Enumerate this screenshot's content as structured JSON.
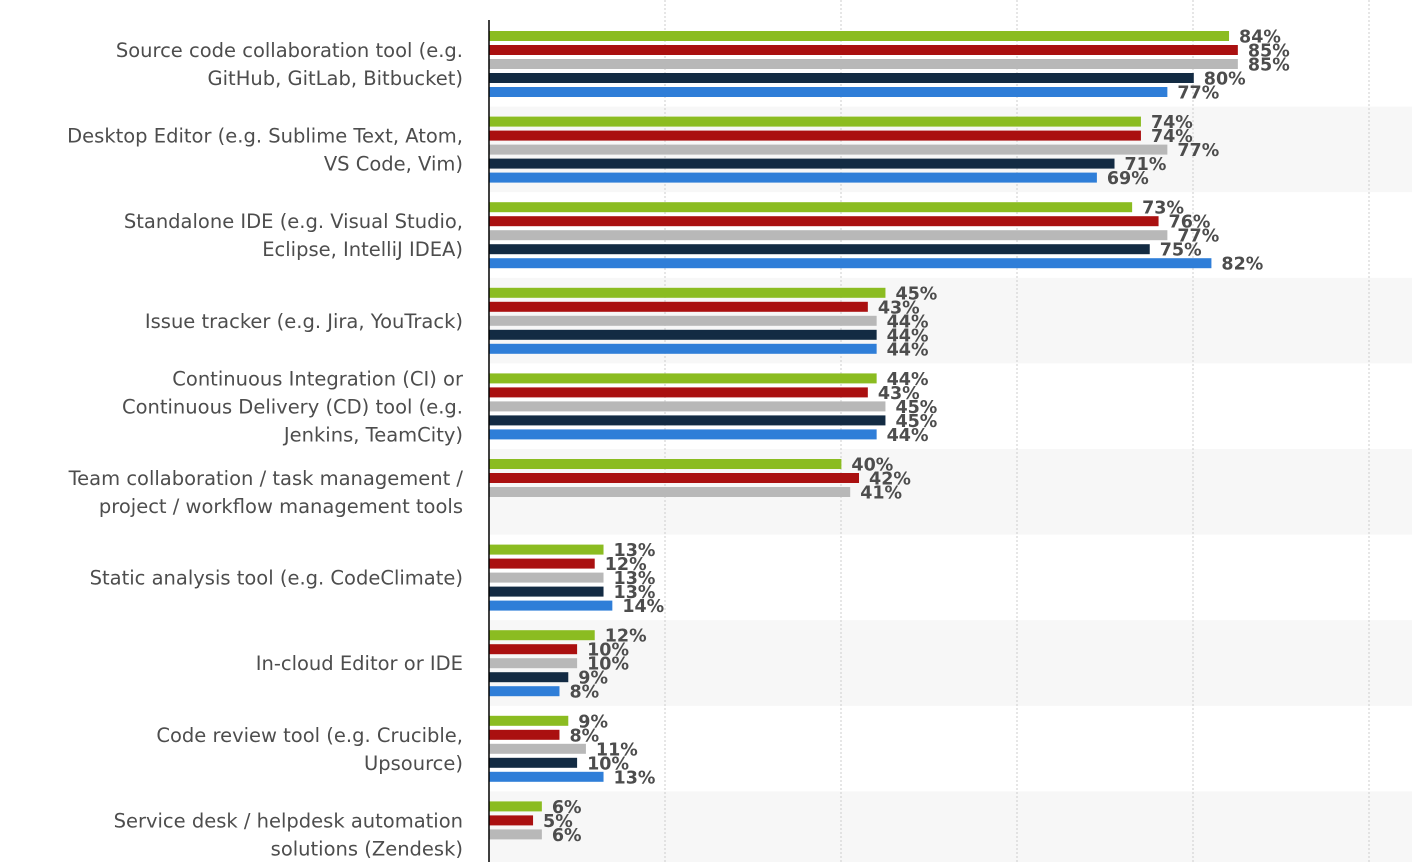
{
  "chart_data": {
    "type": "bar",
    "orientation": "horizontal",
    "grid": true,
    "xlim": [
      0,
      100
    ],
    "categories": [
      [
        "Source code collaboration tool (e.g.",
        "GitHub, GitLab, Bitbucket)"
      ],
      [
        "Desktop Editor (e.g. Sublime Text, Atom,",
        "VS Code, Vim)"
      ],
      [
        "Standalone IDE (e.g. Visual Studio,",
        "Eclipse, IntelliJ IDEA)"
      ],
      [
        "Issue tracker (e.g. Jira, YouTrack)"
      ],
      [
        "Continuous Integration (CI) or",
        "Continuous Delivery (CD) tool (e.g.",
        "Jenkins, TeamCity)"
      ],
      [
        "Team collaboration / task management /",
        "project / workflow management tools"
      ],
      [
        "Static analysis tool (e.g. CodeClimate)"
      ],
      [
        "In-cloud Editor or IDE"
      ],
      [
        "Code review tool (e.g. Crucible,",
        "Upsource)"
      ],
      [
        "Service desk / helpdesk automation",
        "solutions (Zendesk)"
      ]
    ],
    "series": [
      {
        "color": "#8bbc21",
        "values": [
          84,
          74,
          73,
          45,
          44,
          40,
          13,
          12,
          9,
          6
        ]
      },
      {
        "color": "#aa1010",
        "values": [
          85,
          74,
          76,
          43,
          43,
          42,
          12,
          10,
          8,
          5
        ]
      },
      {
        "color": "#b8b8b8",
        "values": [
          85,
          77,
          77,
          44,
          45,
          41,
          13,
          10,
          11,
          6
        ]
      },
      {
        "color": "#132b43",
        "values": [
          80,
          71,
          75,
          44,
          45,
          null,
          13,
          9,
          10,
          null
        ]
      },
      {
        "color": "#2f7ed8",
        "values": [
          77,
          69,
          82,
          44,
          44,
          null,
          14,
          8,
          13,
          null
        ]
      }
    ],
    "value_suffix": "%"
  }
}
